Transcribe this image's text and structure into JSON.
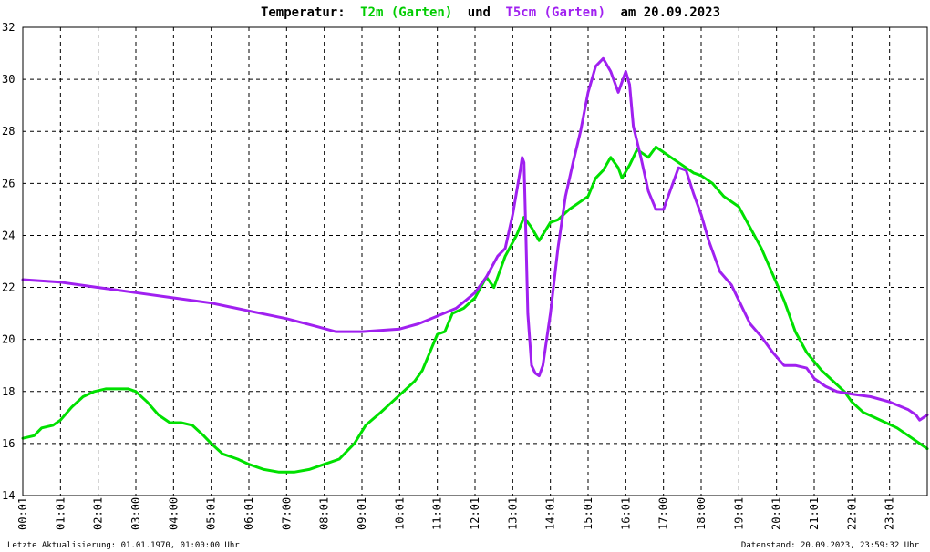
{
  "chart_data": {
    "type": "line",
    "title": {
      "prefix": "Temperatur:",
      "series1_label": "T2m (Garten)",
      "middle": "und",
      "series2_label": "T5cm (Garten)",
      "date_text": "am 20.09.2023"
    },
    "xlabel": "",
    "ylabel": "",
    "x_tick_labels": [
      "00:01",
      "01:01",
      "02:01",
      "03:00",
      "04:00",
      "05:01",
      "06:01",
      "07:00",
      "08:01",
      "09:01",
      "10:01",
      "11:01",
      "12:01",
      "13:01",
      "14:01",
      "15:01",
      "16:01",
      "17:00",
      "18:00",
      "19:01",
      "20:01",
      "21:01",
      "22:01",
      "23:01"
    ],
    "x_range_hours": [
      0,
      24
    ],
    "y_ticks": [
      14,
      16,
      18,
      20,
      22,
      24,
      26,
      28,
      30,
      32
    ],
    "ylim": [
      14,
      32
    ],
    "grid": true,
    "series": [
      {
        "name": "T2m (Garten)",
        "color": "#00e000",
        "points": [
          [
            0,
            16.2
          ],
          [
            0.3,
            16.3
          ],
          [
            0.5,
            16.6
          ],
          [
            0.8,
            16.7
          ],
          [
            1.0,
            16.9
          ],
          [
            1.3,
            17.4
          ],
          [
            1.6,
            17.8
          ],
          [
            1.9,
            18.0
          ],
          [
            2.2,
            18.1
          ],
          [
            2.5,
            18.1
          ],
          [
            2.8,
            18.1
          ],
          [
            3.0,
            18.0
          ],
          [
            3.3,
            17.6
          ],
          [
            3.6,
            17.1
          ],
          [
            3.9,
            16.8
          ],
          [
            4.2,
            16.8
          ],
          [
            4.5,
            16.7
          ],
          [
            4.8,
            16.3
          ],
          [
            5.0,
            16.0
          ],
          [
            5.3,
            15.6
          ],
          [
            5.7,
            15.4
          ],
          [
            6.0,
            15.2
          ],
          [
            6.4,
            15.0
          ],
          [
            6.8,
            14.9
          ],
          [
            7.2,
            14.9
          ],
          [
            7.6,
            15.0
          ],
          [
            8.0,
            15.2
          ],
          [
            8.4,
            15.4
          ],
          [
            8.8,
            16.0
          ],
          [
            9.1,
            16.7
          ],
          [
            9.5,
            17.2
          ],
          [
            9.8,
            17.6
          ],
          [
            10.1,
            18.0
          ],
          [
            10.4,
            18.4
          ],
          [
            10.6,
            18.8
          ],
          [
            10.8,
            19.5
          ],
          [
            11.0,
            20.2
          ],
          [
            11.2,
            20.3
          ],
          [
            11.4,
            21.0
          ],
          [
            11.7,
            21.2
          ],
          [
            12.0,
            21.6
          ],
          [
            12.3,
            22.4
          ],
          [
            12.5,
            22.0
          ],
          [
            12.8,
            23.2
          ],
          [
            13.1,
            24.0
          ],
          [
            13.3,
            24.7
          ],
          [
            13.5,
            24.3
          ],
          [
            13.7,
            23.8
          ],
          [
            14.0,
            24.5
          ],
          [
            14.2,
            24.6
          ],
          [
            14.5,
            25.0
          ],
          [
            14.8,
            25.3
          ],
          [
            15.0,
            25.5
          ],
          [
            15.2,
            26.2
          ],
          [
            15.4,
            26.5
          ],
          [
            15.6,
            27.0
          ],
          [
            15.8,
            26.6
          ],
          [
            15.9,
            26.2
          ],
          [
            16.1,
            26.7
          ],
          [
            16.3,
            27.3
          ],
          [
            16.6,
            27.0
          ],
          [
            16.8,
            27.4
          ],
          [
            17.0,
            27.2
          ],
          [
            17.2,
            27.0
          ],
          [
            17.5,
            26.7
          ],
          [
            17.8,
            26.4
          ],
          [
            18.0,
            26.3
          ],
          [
            18.3,
            26.0
          ],
          [
            18.6,
            25.5
          ],
          [
            19.0,
            25.1
          ],
          [
            19.3,
            24.3
          ],
          [
            19.6,
            23.5
          ],
          [
            19.9,
            22.5
          ],
          [
            20.2,
            21.5
          ],
          [
            20.5,
            20.3
          ],
          [
            20.8,
            19.5
          ],
          [
            21.2,
            18.8
          ],
          [
            21.5,
            18.4
          ],
          [
            21.8,
            18.0
          ],
          [
            22.0,
            17.6
          ],
          [
            22.3,
            17.2
          ],
          [
            22.6,
            17.0
          ],
          [
            22.9,
            16.8
          ],
          [
            23.2,
            16.6
          ],
          [
            23.5,
            16.3
          ],
          [
            23.8,
            16.0
          ],
          [
            24.0,
            15.8
          ]
        ]
      },
      {
        "name": "T5cm (Garten)",
        "color": "#a020f0",
        "points": [
          [
            0,
            22.3
          ],
          [
            1.0,
            22.2
          ],
          [
            2.0,
            22.0
          ],
          [
            3.0,
            21.8
          ],
          [
            4.0,
            21.6
          ],
          [
            5.0,
            21.4
          ],
          [
            6.0,
            21.1
          ],
          [
            7.0,
            20.8
          ],
          [
            7.8,
            20.5
          ],
          [
            8.3,
            20.3
          ],
          [
            9.0,
            20.3
          ],
          [
            10.0,
            20.4
          ],
          [
            10.5,
            20.6
          ],
          [
            11.0,
            20.9
          ],
          [
            11.5,
            21.2
          ],
          [
            12.0,
            21.8
          ],
          [
            12.3,
            22.4
          ],
          [
            12.6,
            23.2
          ],
          [
            12.8,
            23.5
          ],
          [
            13.0,
            24.8
          ],
          [
            13.2,
            26.5
          ],
          [
            13.25,
            27.0
          ],
          [
            13.3,
            26.8
          ],
          [
            13.35,
            24.0
          ],
          [
            13.4,
            21.0
          ],
          [
            13.5,
            19.0
          ],
          [
            13.6,
            18.7
          ],
          [
            13.7,
            18.6
          ],
          [
            13.8,
            19.0
          ],
          [
            14.0,
            21.0
          ],
          [
            14.2,
            23.5
          ],
          [
            14.4,
            25.5
          ],
          [
            14.6,
            26.8
          ],
          [
            14.8,
            28.0
          ],
          [
            15.0,
            29.5
          ],
          [
            15.2,
            30.5
          ],
          [
            15.4,
            30.8
          ],
          [
            15.6,
            30.3
          ],
          [
            15.8,
            29.5
          ],
          [
            16.0,
            30.3
          ],
          [
            16.1,
            29.8
          ],
          [
            16.2,
            28.2
          ],
          [
            16.4,
            27.0
          ],
          [
            16.6,
            25.7
          ],
          [
            16.8,
            25.0
          ],
          [
            17.0,
            25.0
          ],
          [
            17.2,
            25.8
          ],
          [
            17.4,
            26.6
          ],
          [
            17.6,
            26.5
          ],
          [
            17.8,
            25.6
          ],
          [
            18.0,
            24.8
          ],
          [
            18.2,
            23.8
          ],
          [
            18.5,
            22.6
          ],
          [
            18.8,
            22.1
          ],
          [
            19.0,
            21.5
          ],
          [
            19.3,
            20.6
          ],
          [
            19.6,
            20.1
          ],
          [
            19.9,
            19.5
          ],
          [
            20.2,
            19.0
          ],
          [
            20.5,
            19.0
          ],
          [
            20.8,
            18.9
          ],
          [
            21.0,
            18.5
          ],
          [
            21.3,
            18.2
          ],
          [
            21.6,
            18.0
          ],
          [
            22.0,
            17.9
          ],
          [
            22.5,
            17.8
          ],
          [
            23.0,
            17.6
          ],
          [
            23.5,
            17.3
          ],
          [
            23.7,
            17.1
          ],
          [
            23.8,
            16.9
          ],
          [
            24.0,
            17.1
          ]
        ]
      }
    ]
  },
  "footer": {
    "left": "Letzte Aktualisierung: 01.01.1970, 01:00:00 Uhr",
    "right": "Datenstand: 20.09.2023, 23:59:32 Uhr"
  }
}
